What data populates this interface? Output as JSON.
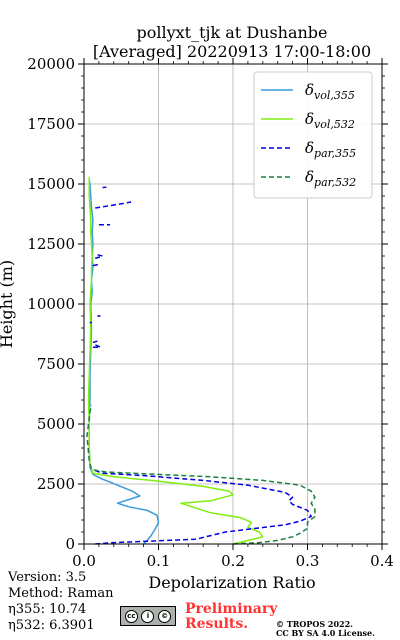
{
  "chart_data": {
    "type": "line",
    "title_line1": "pollyxt_tjk at Dushanbe",
    "title_line2": "[Averaged] 20220913 17:00-18:00",
    "xlabel": "Depolarization Ratio",
    "ylabel": "Height (m)",
    "xlim": [
      0,
      0.4
    ],
    "ylim": [
      0,
      20000
    ],
    "x_ticks": [
      0.0,
      0.1,
      0.2,
      0.3,
      0.4
    ],
    "x_tick_labels": [
      "0.0",
      "0.1",
      "0.2",
      "0.3",
      "0.4"
    ],
    "y_ticks": [
      0,
      2500,
      5000,
      7500,
      10000,
      12500,
      15000,
      17500,
      20000
    ],
    "y_tick_labels": [
      "0",
      "2500",
      "5000",
      "7500",
      "10000",
      "12500",
      "15000",
      "17500",
      "20000"
    ],
    "grid": true,
    "legend_position": "top-right",
    "series": [
      {
        "name": "δvol,355",
        "legend_main": "δ",
        "legend_sub": "vol,355",
        "color": "#3a9be0",
        "dash": "solid",
        "points": [
          [
            0.08,
            0
          ],
          [
            0.085,
            150
          ],
          [
            0.09,
            350
          ],
          [
            0.095,
            600
          ],
          [
            0.1,
            900
          ],
          [
            0.098,
            1200
          ],
          [
            0.085,
            1400
          ],
          [
            0.06,
            1550
          ],
          [
            0.045,
            1700
          ],
          [
            0.06,
            1850
          ],
          [
            0.075,
            2000
          ],
          [
            0.065,
            2200
          ],
          [
            0.045,
            2450
          ],
          [
            0.025,
            2700
          ],
          [
            0.012,
            2900
          ],
          [
            0.008,
            3200
          ],
          [
            0.007,
            4000
          ],
          [
            0.007,
            5000
          ],
          [
            0.008,
            6000
          ],
          [
            0.008,
            7000
          ],
          [
            0.009,
            8000
          ],
          [
            0.01,
            9000
          ],
          [
            0.009,
            10000
          ],
          [
            0.011,
            10500
          ],
          [
            0.01,
            11000
          ],
          [
            0.012,
            11500
          ],
          [
            0.011,
            12000
          ],
          [
            0.012,
            12500
          ],
          [
            0.011,
            13000
          ],
          [
            0.012,
            13500
          ],
          [
            0.01,
            14000
          ],
          [
            0.009,
            14500
          ],
          [
            0.008,
            15000
          ],
          [
            0.007,
            15200
          ]
        ]
      },
      {
        "name": "δvol,532",
        "legend_main": "δ",
        "legend_sub": "vol,532",
        "color": "#80ee10",
        "dash": "solid",
        "points": [
          [
            0.2,
            0
          ],
          [
            0.22,
            150
          ],
          [
            0.24,
            300
          ],
          [
            0.235,
            500
          ],
          [
            0.22,
            700
          ],
          [
            0.225,
            900
          ],
          [
            0.21,
            1100
          ],
          [
            0.17,
            1300
          ],
          [
            0.13,
            1700
          ],
          [
            0.17,
            1800
          ],
          [
            0.2,
            2050
          ],
          [
            0.195,
            2200
          ],
          [
            0.16,
            2400
          ],
          [
            0.09,
            2650
          ],
          [
            0.04,
            2800
          ],
          [
            0.012,
            2950
          ],
          [
            0.008,
            3300
          ],
          [
            0.007,
            4000
          ],
          [
            0.007,
            5000
          ],
          [
            0.006,
            6000
          ],
          [
            0.007,
            7000
          ],
          [
            0.008,
            8000
          ],
          [
            0.009,
            9000
          ],
          [
            0.008,
            10000
          ],
          [
            0.009,
            10500
          ],
          [
            0.01,
            11000
          ],
          [
            0.01,
            11500
          ],
          [
            0.011,
            12000
          ],
          [
            0.01,
            12500
          ],
          [
            0.009,
            13000
          ],
          [
            0.009,
            13500
          ],
          [
            0.008,
            14000
          ],
          [
            0.007,
            14500
          ],
          [
            0.007,
            15000
          ],
          [
            0.007,
            15300
          ]
        ]
      },
      {
        "name": "δpar,355",
        "legend_main": "δ",
        "legend_sub": "par,355",
        "color": "#0000e6",
        "dash": "dashed",
        "points": [
          [
            0.015,
            0
          ],
          [
            0.04,
            60
          ],
          [
            0.09,
            120
          ],
          [
            0.15,
            200
          ],
          [
            0.17,
            350
          ],
          [
            0.19,
            500
          ],
          [
            0.23,
            650
          ],
          [
            0.27,
            800
          ],
          [
            0.29,
            950
          ],
          [
            0.305,
            1150
          ],
          [
            0.3,
            1400
          ],
          [
            0.28,
            1650
          ],
          [
            0.275,
            1800
          ],
          [
            0.28,
            1950
          ],
          [
            0.27,
            2150
          ],
          [
            0.22,
            2450
          ],
          [
            0.16,
            2650
          ],
          [
            0.08,
            2850
          ],
          [
            0.025,
            2950
          ],
          [
            0.012,
            3100
          ]
        ]
      },
      {
        "name": "δpar,532",
        "legend_main": "δ",
        "legend_sub": "par,532",
        "color": "#1a8040",
        "dash": "dashed",
        "points": [
          [
            0.2,
            0
          ],
          [
            0.235,
            60
          ],
          [
            0.26,
            150
          ],
          [
            0.28,
            300
          ],
          [
            0.29,
            450
          ],
          [
            0.3,
            650
          ],
          [
            0.3,
            900
          ],
          [
            0.31,
            1150
          ],
          [
            0.31,
            1450
          ],
          [
            0.305,
            1700
          ],
          [
            0.31,
            1950
          ],
          [
            0.305,
            2200
          ],
          [
            0.29,
            2450
          ],
          [
            0.24,
            2650
          ],
          [
            0.17,
            2800
          ],
          [
            0.08,
            2930
          ],
          [
            0.03,
            3000
          ],
          [
            0.01,
            3100
          ],
          [
            0.007,
            3500
          ],
          [
            0.004,
            4500
          ],
          [
            0.006,
            5000
          ],
          [
            0.008,
            5500
          ],
          [
            0.01,
            5800
          ]
        ]
      }
    ],
    "par355_upper_fragments": [
      [
        [
          0.015,
          14000
        ],
        [
          0.035,
          14100
        ],
        [
          0.055,
          14200
        ],
        [
          0.063,
          14250
        ],
        [
          0.058,
          14200
        ]
      ],
      [
        [
          0.025,
          14850
        ],
        [
          0.03,
          14870
        ]
      ],
      [
        [
          0.02,
          13300
        ],
        [
          0.035,
          13300
        ]
      ],
      [
        [
          0.015,
          11900
        ],
        [
          0.025,
          12000
        ],
        [
          0.018,
          12050
        ]
      ],
      [
        [
          0.012,
          11600
        ],
        [
          0.02,
          11650
        ]
      ],
      [
        [
          0.018,
          9500
        ],
        [
          0.022,
          9500
        ]
      ],
      [
        [
          0.008,
          9200
        ],
        [
          0.01,
          9250
        ]
      ],
      [
        [
          0.012,
          8200
        ],
        [
          0.022,
          8200
        ],
        [
          0.015,
          8300
        ]
      ],
      [
        [
          0.012,
          8400
        ],
        [
          0.018,
          8450
        ]
      ]
    ]
  },
  "info": {
    "version": "Version: 3.5",
    "method": "Method: Raman",
    "eta355": "η355:  10.74",
    "eta532": "η532: 6.3901"
  },
  "license": {
    "badge": [
      "cc",
      "i",
      "©"
    ],
    "preliminary": "Preliminary Results.",
    "copyright_line1": "© TROPOS 2022.",
    "copyright_line2": "CC BY SA 4.0 License."
  }
}
